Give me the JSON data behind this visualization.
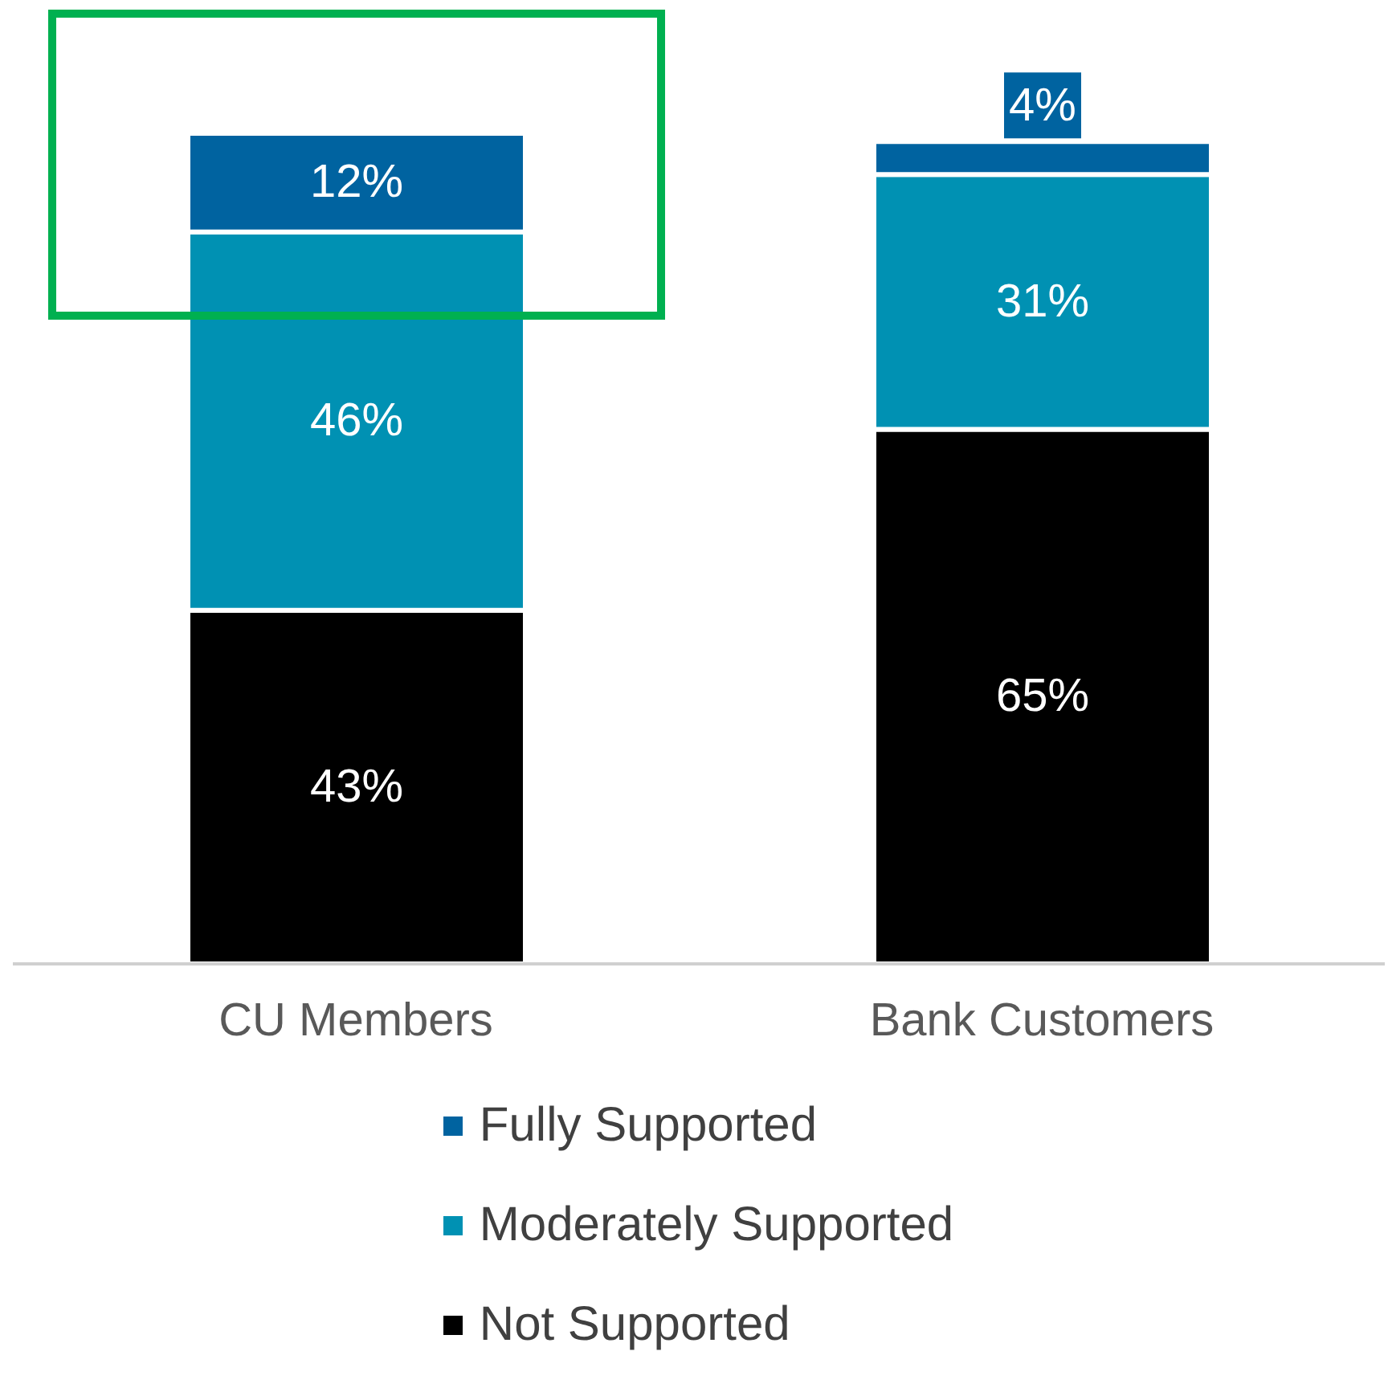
{
  "chart_data": {
    "type": "bar",
    "stacked": true,
    "categories": [
      "CU Members",
      "Bank Customers"
    ],
    "series": [
      {
        "name": "Not Supported",
        "color": "#000000",
        "values": [
          43,
          65
        ],
        "value_labels": [
          "43%",
          "65%"
        ]
      },
      {
        "name": "Moderately Supported",
        "color": "#0091b3",
        "values": [
          46,
          31
        ],
        "value_labels": [
          "46%",
          "31%"
        ]
      },
      {
        "name": "Fully Supported",
        "color": "#0063a0",
        "values": [
          12,
          4
        ],
        "value_labels": [
          "12%",
          "4%"
        ]
      }
    ],
    "legend": "bottom"
  }
}
